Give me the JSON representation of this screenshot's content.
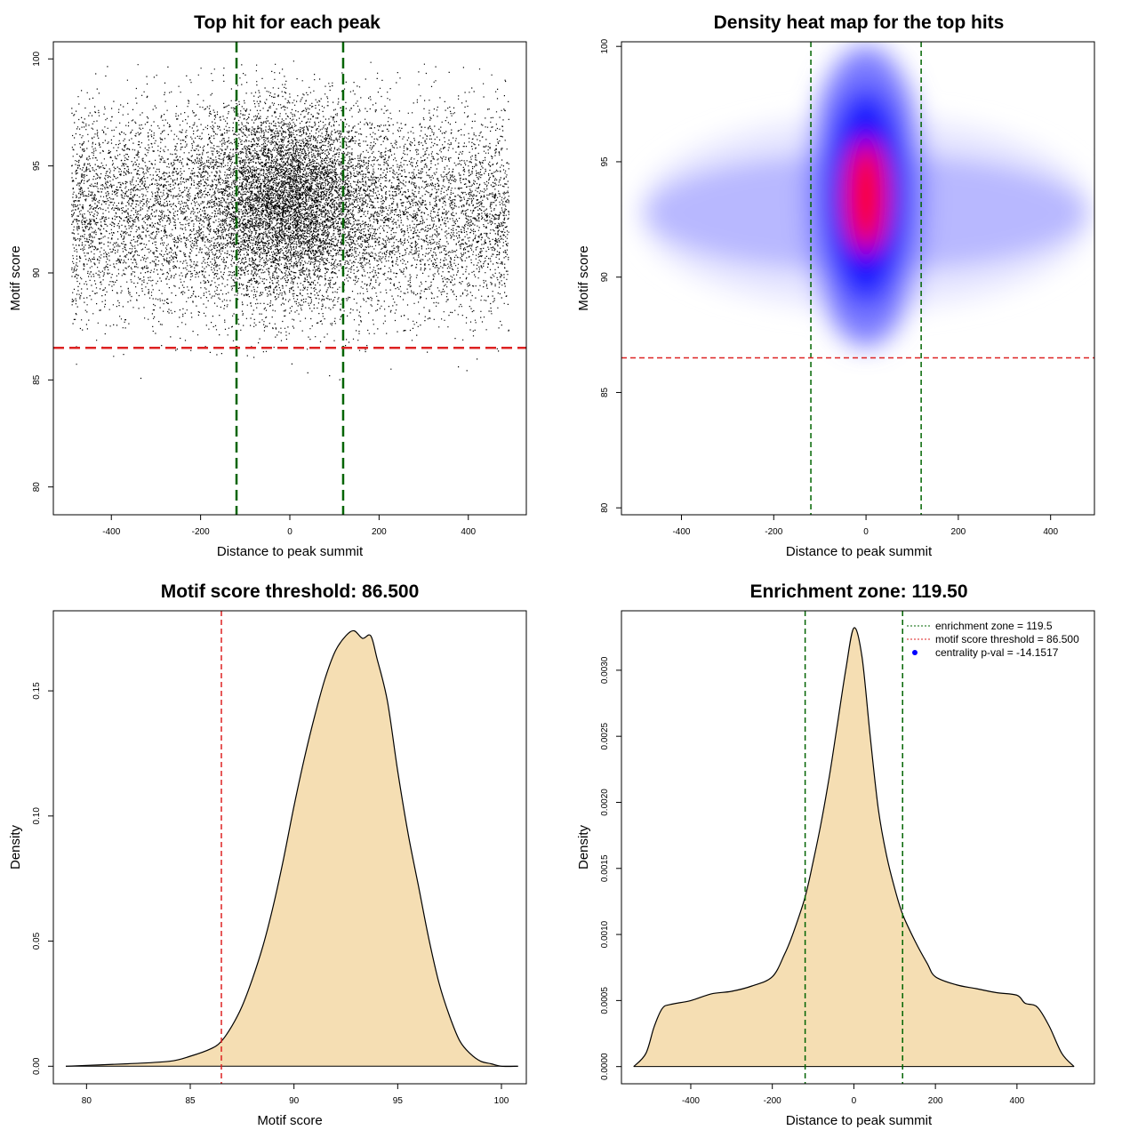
{
  "figure": {
    "type": "4-panel figure (2x2)"
  },
  "chart_data": [
    {
      "type": "scatter",
      "title": "Top hit for each peak",
      "xlabel": "Distance to peak summit",
      "ylabel": "Motif score",
      "xlim": [
        -530,
        530
      ],
      "ylim": [
        78.7,
        100.8
      ],
      "xticks": [
        -400,
        -200,
        0,
        200,
        400
      ],
      "yticks": [
        80,
        85,
        90,
        95,
        100
      ],
      "grid": false,
      "points_summary": {
        "x_range": [
          -490,
          490
        ],
        "y_center": 93,
        "y_spread": 2.5,
        "dense_center": [
          0,
          93.5
        ],
        "approx_count": "tens of thousands"
      },
      "vlines": [
        -119.5,
        119.5
      ],
      "vline_color": "#006400",
      "hline": 86.5,
      "hline_color": "#dd2222"
    },
    {
      "type": "heatmap",
      "title": "Density heat map for the top hits",
      "xlabel": "Distance to peak summit",
      "ylabel": "Motif score",
      "xlim": [
        -530,
        495
      ],
      "ylim": [
        79.7,
        100.2
      ],
      "xticks": [
        -400,
        -200,
        0,
        200,
        400
      ],
      "yticks": [
        80,
        85,
        90,
        95,
        100
      ],
      "color_scale": [
        "#ffffff",
        "#0000ff",
        "#ff0000"
      ],
      "peak": [
        0,
        93.5
      ],
      "vlines": [
        -119.5,
        119.5
      ],
      "vline_color": "#006400",
      "hline": 86.5,
      "hline_color": "#dd2222"
    },
    {
      "type": "area",
      "title": "Motif score threshold: 86.500",
      "xlabel": "Motif score",
      "ylabel": "Density",
      "xlim": [
        78.4,
        101.2
      ],
      "ylim": [
        -0.007,
        0.182
      ],
      "xticks": [
        80,
        85,
        90,
        95,
        100
      ],
      "yticks": [
        0.0,
        0.05,
        0.1,
        0.15
      ],
      "ytick_labels": [
        "0.00",
        "0.05",
        "0.10",
        "0.15"
      ],
      "fill_color": "#f5deb3",
      "x": [
        79,
        82,
        84,
        85,
        86,
        86.5,
        87,
        87.5,
        88,
        88.5,
        89,
        89.5,
        90,
        90.5,
        91,
        91.5,
        92,
        92.5,
        92.9,
        93.3,
        93.7,
        94,
        94.5,
        95,
        95.5,
        96,
        96.5,
        97,
        97.5,
        98,
        98.5,
        99,
        99.5,
        100,
        100.8
      ],
      "y": [
        0,
        0.001,
        0.002,
        0.004,
        0.007,
        0.01,
        0.016,
        0.024,
        0.035,
        0.048,
        0.064,
        0.083,
        0.104,
        0.123,
        0.14,
        0.155,
        0.166,
        0.172,
        0.174,
        0.171,
        0.172,
        0.163,
        0.146,
        0.118,
        0.093,
        0.072,
        0.051,
        0.033,
        0.02,
        0.01,
        0.005,
        0.002,
        0.001,
        0,
        0
      ],
      "vline": 86.5,
      "vline_color": "#dd2222"
    },
    {
      "type": "area",
      "title": "Enrichment zone: 119.50",
      "xlabel": "Distance to peak summit",
      "ylabel": "Density",
      "xlim": [
        -570,
        590
      ],
      "ylim": [
        -0.00013,
        0.00345
      ],
      "xticks": [
        -400,
        -200,
        0,
        200,
        400
      ],
      "yticks": [
        0.0,
        0.0005,
        0.001,
        0.0015,
        0.002,
        0.0025,
        0.003
      ],
      "ytick_labels": [
        "0.0000",
        "0.0005",
        "0.0010",
        "0.0015",
        "0.0020",
        "0.0025",
        "0.0030"
      ],
      "fill_color": "#f5deb3",
      "x": [
        -540,
        -510,
        -490,
        -470,
        -450,
        -400,
        -350,
        -300,
        -250,
        -200,
        -170,
        -150,
        -120,
        -100,
        -80,
        -60,
        -40,
        -20,
        0,
        20,
        40,
        60,
        80,
        100,
        120,
        150,
        180,
        200,
        250,
        300,
        350,
        400,
        420,
        450,
        480,
        510,
        540
      ],
      "y": [
        0,
        0.0001,
        0.0003,
        0.00044,
        0.00047,
        0.0005,
        0.00055,
        0.00057,
        0.00061,
        0.00068,
        0.00085,
        0.001,
        0.00128,
        0.00155,
        0.00185,
        0.0022,
        0.0026,
        0.003,
        0.00332,
        0.0031,
        0.0025,
        0.00195,
        0.0016,
        0.00135,
        0.00115,
        0.00095,
        0.00078,
        0.00068,
        0.00062,
        0.00059,
        0.00056,
        0.00054,
        0.00048,
        0.00045,
        0.0003,
        0.0001,
        0
      ],
      "vlines": [
        -119.5,
        119.5
      ],
      "vline_color": "#006400",
      "legend": {
        "placement": "top-right",
        "entries": [
          {
            "label": "enrichment zone = 119.5",
            "color": "#006400",
            "style": "dotted-line"
          },
          {
            "label": "motif score threshold = 86.500",
            "color": "#dd2222",
            "style": "dotted-line"
          },
          {
            "label": "centrality p-val = -14.1517",
            "color": "#0000ff",
            "style": "point"
          }
        ]
      }
    }
  ]
}
